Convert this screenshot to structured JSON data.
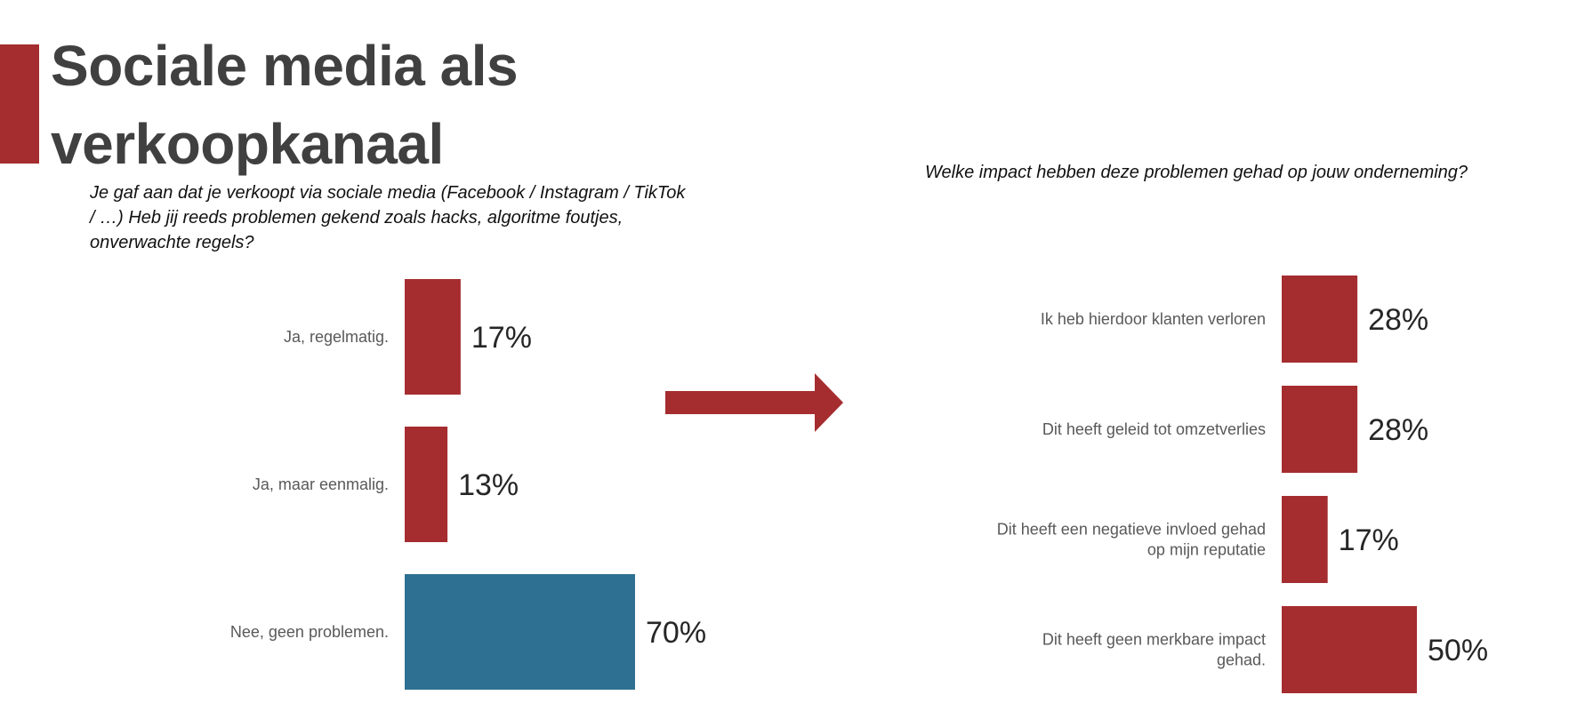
{
  "page": {
    "title_line1": "Sociale media als",
    "title_line2": "verkoopkanaal"
  },
  "colors": {
    "accent": "#a52d2f",
    "bar_red": "#a52d2f",
    "bar_blue": "#2e7091",
    "title": "#404040"
  },
  "chart_data": [
    {
      "type": "bar",
      "orientation": "horizontal",
      "title": "Je gaf aan dat je verkoopt via sociale media (Facebook / Instagram / TikTok / …) Heb jij reeds problemen gekend zoals hacks, algoritme foutjes, onverwachte regels?",
      "categories": [
        "Ja, regelmatig.",
        "Ja, maar eenmalig.",
        "Nee, geen problemen."
      ],
      "values": [
        17,
        13,
        70
      ],
      "value_labels": [
        "17%",
        "13%",
        "70%"
      ],
      "bar_colors": [
        "#a52d2f",
        "#a52d2f",
        "#2e7091"
      ],
      "xlim": [
        0,
        100
      ],
      "grid": false,
      "legend": "none"
    },
    {
      "type": "bar",
      "orientation": "horizontal",
      "title": "Welke impact hebben deze problemen gehad op jouw onderneming?",
      "categories": [
        [
          "Ik heb hierdoor klanten verloren"
        ],
        [
          "Dit heeft geleid tot omzetverlies"
        ],
        [
          "Dit heeft een negatieve invloed gehad",
          "op mijn reputatie"
        ],
        [
          "Dit heeft geen merkbare impact",
          "gehad."
        ]
      ],
      "values": [
        28,
        28,
        17,
        50
      ],
      "value_labels": [
        "28%",
        "28%",
        "17%",
        "50%"
      ],
      "bar_colors": [
        "#a52d2f",
        "#a52d2f",
        "#a52d2f",
        "#a52d2f"
      ],
      "xlim": [
        0,
        100
      ],
      "grid": false,
      "legend": "none"
    }
  ]
}
